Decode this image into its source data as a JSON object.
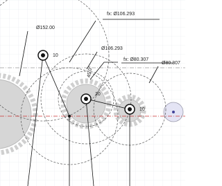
{
  "dimensions": [
    {
      "label": "Ø152.00"
    },
    {
      "label": "fx: Ø106.293"
    },
    {
      "label": "Ø106.293"
    },
    {
      "label": "fx: Ø80.307"
    },
    {
      "label": "Ø80.307"
    },
    {
      "label": "10"
    },
    {
      "label": "10"
    },
    {
      "label": "10"
    },
    {
      "label": "45.0°"
    }
  ]
}
